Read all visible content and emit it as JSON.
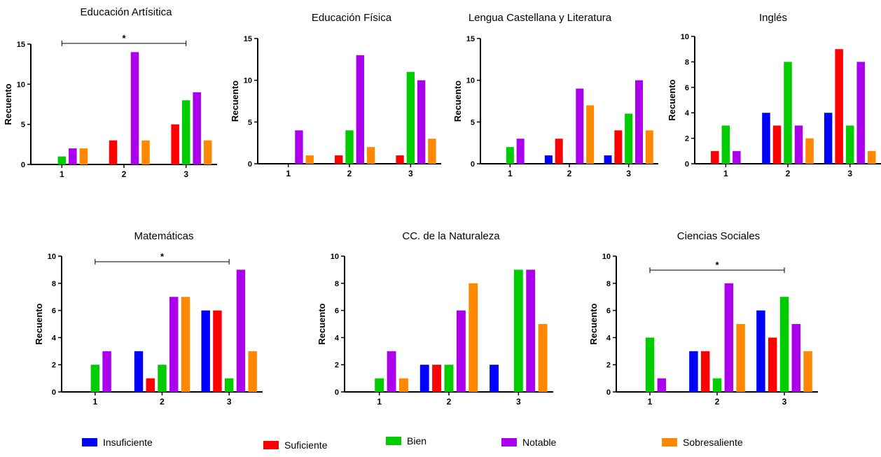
{
  "colors": {
    "Insuficiente": "#0000ff",
    "Suficiente": "#ff0000",
    "Bien": "#00cc00",
    "Notable": "#aa00ee",
    "Sobresaliente": "#ff8800"
  },
  "legend": {
    "items": [
      {
        "label": "Insuficiente",
        "color": "#0000ff"
      },
      {
        "label": "Suficiente",
        "color": "#ff0000"
      },
      {
        "label": "Bien",
        "color": "#00cc00"
      },
      {
        "label": "Notable",
        "color": "#aa00ee"
      },
      {
        "label": "Sobresaliente",
        "color": "#ff8800"
      }
    ]
  },
  "chart_data": [
    {
      "type": "bar",
      "title": "Educación Artísitica",
      "ylabel": "Recuento",
      "xlabel": "",
      "categories": [
        "1",
        "2",
        "3"
      ],
      "ylim": [
        0,
        15
      ],
      "yticks": [
        0,
        5,
        10,
        15
      ],
      "significance": "*",
      "series": [
        {
          "name": "Insuficiente",
          "values": [
            0,
            0,
            0
          ]
        },
        {
          "name": "Suficiente",
          "values": [
            0,
            3,
            5
          ]
        },
        {
          "name": "Bien",
          "values": [
            1,
            0,
            8
          ]
        },
        {
          "name": "Notable",
          "values": [
            2,
            14,
            9
          ]
        },
        {
          "name": "Sobresaliente",
          "values": [
            2,
            3,
            3
          ]
        }
      ]
    },
    {
      "type": "bar",
      "title": "Educación Física",
      "ylabel": "Recuento",
      "xlabel": "",
      "categories": [
        "1",
        "2",
        "3"
      ],
      "ylim": [
        0,
        15
      ],
      "yticks": [
        0,
        5,
        10,
        15
      ],
      "significance": "",
      "series": [
        {
          "name": "Insuficiente",
          "values": [
            0,
            0,
            0
          ]
        },
        {
          "name": "Suficiente",
          "values": [
            0,
            1,
            1
          ]
        },
        {
          "name": "Bien",
          "values": [
            0,
            4,
            11
          ]
        },
        {
          "name": "Notable",
          "values": [
            4,
            13,
            10
          ]
        },
        {
          "name": "Sobresaliente",
          "values": [
            1,
            2,
            3
          ]
        }
      ]
    },
    {
      "type": "bar",
      "title": "Lengua Castellana y Literatura",
      "ylabel": "Recuento",
      "xlabel": "",
      "categories": [
        "1",
        "2",
        "3"
      ],
      "ylim": [
        0,
        15
      ],
      "yticks": [
        0,
        5,
        10,
        15
      ],
      "significance": "",
      "series": [
        {
          "name": "Insuficiente",
          "values": [
            0,
            1,
            1
          ]
        },
        {
          "name": "Suficiente",
          "values": [
            0,
            3,
            4
          ]
        },
        {
          "name": "Bien",
          "values": [
            2,
            0,
            6
          ]
        },
        {
          "name": "Notable",
          "values": [
            3,
            9,
            10
          ]
        },
        {
          "name": "Sobresaliente",
          "values": [
            0,
            7,
            4
          ]
        }
      ]
    },
    {
      "type": "bar",
      "title": "Inglés",
      "ylabel": "Recuento",
      "xlabel": "",
      "categories": [
        "1",
        "2",
        "3"
      ],
      "ylim": [
        0,
        10
      ],
      "yticks": [
        0,
        2,
        4,
        6,
        8,
        10
      ],
      "significance": "",
      "series": [
        {
          "name": "Insuficiente",
          "values": [
            0,
            4,
            4
          ]
        },
        {
          "name": "Suficiente",
          "values": [
            1,
            3,
            9
          ]
        },
        {
          "name": "Bien",
          "values": [
            3,
            8,
            3
          ]
        },
        {
          "name": "Notable",
          "values": [
            1,
            3,
            8
          ]
        },
        {
          "name": "Sobresaliente",
          "values": [
            0,
            2,
            1
          ]
        }
      ]
    },
    {
      "type": "bar",
      "title": "Matemáticas",
      "ylabel": "Recuento",
      "xlabel": "",
      "categories": [
        "1",
        "2",
        "3"
      ],
      "ylim": [
        0,
        10
      ],
      "yticks": [
        0,
        2,
        4,
        6,
        8,
        10
      ],
      "significance": "*",
      "series": [
        {
          "name": "Insuficiente",
          "values": [
            0,
            3,
            6
          ]
        },
        {
          "name": "Suficiente",
          "values": [
            0,
            1,
            6
          ]
        },
        {
          "name": "Bien",
          "values": [
            2,
            2,
            1
          ]
        },
        {
          "name": "Notable",
          "values": [
            3,
            7,
            9
          ]
        },
        {
          "name": "Sobresaliente",
          "values": [
            0,
            7,
            3
          ]
        }
      ]
    },
    {
      "type": "bar",
      "title": "CC. de la Naturaleza",
      "ylabel": "Recuento",
      "xlabel": "",
      "categories": [
        "1",
        "2",
        "3"
      ],
      "ylim": [
        0,
        10
      ],
      "yticks": [
        0,
        2,
        4,
        6,
        8,
        10
      ],
      "significance": "",
      "series": [
        {
          "name": "Insuficiente",
          "values": [
            0,
            2,
            2
          ]
        },
        {
          "name": "Suficiente",
          "values": [
            0,
            2,
            0
          ]
        },
        {
          "name": "Bien",
          "values": [
            1,
            2,
            9
          ]
        },
        {
          "name": "Notable",
          "values": [
            3,
            6,
            9
          ]
        },
        {
          "name": "Sobresaliente",
          "values": [
            1,
            8,
            5
          ]
        }
      ]
    },
    {
      "type": "bar",
      "title": "Ciencias Sociales",
      "ylabel": "Recuento",
      "xlabel": "",
      "categories": [
        "1",
        "2",
        "3"
      ],
      "ylim": [
        0,
        10
      ],
      "yticks": [
        0,
        2,
        4,
        6,
        8,
        10
      ],
      "significance": "*",
      "series": [
        {
          "name": "Insuficiente",
          "values": [
            0,
            3,
            6
          ]
        },
        {
          "name": "Suficiente",
          "values": [
            0,
            3,
            4
          ]
        },
        {
          "name": "Bien",
          "values": [
            4,
            1,
            7
          ]
        },
        {
          "name": "Notable",
          "values": [
            1,
            8,
            5
          ]
        },
        {
          "name": "Sobresaliente",
          "values": [
            0,
            5,
            3
          ]
        }
      ]
    }
  ]
}
